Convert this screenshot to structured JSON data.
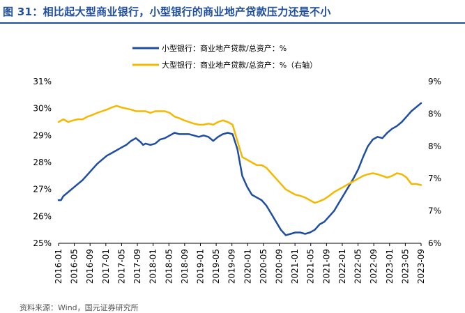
{
  "figure": {
    "title": "图 31：相比起大型商业银行，小型银行的商业地产贷款压力还是不小",
    "source": "资料来源：Wind，国元证券研究所"
  },
  "colors": {
    "small": "#1f4ea1",
    "large": "#f5b800",
    "title": "#1f4e9d"
  },
  "chart_data": {
    "type": "line",
    "x_labels": [
      "2016-01",
      "2016-05",
      "2016-09",
      "2017-01",
      "2017-05",
      "2017-09",
      "2018-01",
      "2018-05",
      "2018-09",
      "2019-01",
      "2019-05",
      "2019-09",
      "2020-01",
      "2020-05",
      "2020-09",
      "2021-01",
      "2021-05",
      "2021-09",
      "2022-01",
      "2022-05",
      "2022-09",
      "2023-01",
      "2023-05",
      "2023-09"
    ],
    "y_left": {
      "ticks": [
        "25%",
        "26%",
        "27%",
        "28%",
        "29%",
        "30%",
        "31%"
      ],
      "min": 25,
      "max": 31
    },
    "y_right": {
      "ticks": [
        "6%",
        "7%",
        "7%",
        "8%",
        "8%",
        "9%"
      ],
      "min": 6,
      "max": 9
    },
    "series": [
      {
        "name": "小型银行：商业地产贷款/总资产：%",
        "axis": "left",
        "points": [
          [
            0,
            26.6
          ],
          [
            0.5,
            26.6
          ],
          [
            1,
            26.75
          ],
          [
            2,
            26.9
          ],
          [
            3,
            27.05
          ],
          [
            4,
            27.2
          ],
          [
            5,
            27.35
          ],
          [
            6,
            27.55
          ],
          [
            7,
            27.75
          ],
          [
            8,
            27.95
          ],
          [
            9,
            28.1
          ],
          [
            10,
            28.25
          ],
          [
            11,
            28.35
          ],
          [
            12,
            28.45
          ],
          [
            13,
            28.55
          ],
          [
            14,
            28.65
          ],
          [
            15,
            28.8
          ],
          [
            16,
            28.9
          ],
          [
            17,
            28.75
          ],
          [
            17.5,
            28.65
          ],
          [
            18,
            28.7
          ],
          [
            19,
            28.65
          ],
          [
            20,
            28.7
          ],
          [
            21,
            28.85
          ],
          [
            22,
            28.9
          ],
          [
            23,
            29.0
          ],
          [
            24,
            29.1
          ],
          [
            25,
            29.05
          ],
          [
            26,
            29.05
          ],
          [
            27,
            29.05
          ],
          [
            28,
            29.0
          ],
          [
            29,
            28.95
          ],
          [
            30,
            29.0
          ],
          [
            31,
            28.95
          ],
          [
            32,
            28.8
          ],
          [
            33,
            28.95
          ],
          [
            34,
            29.05
          ],
          [
            35,
            29.1
          ],
          [
            36,
            29.05
          ],
          [
            37,
            28.5
          ],
          [
            37.5,
            28.0
          ],
          [
            38,
            27.5
          ],
          [
            39,
            27.1
          ],
          [
            40,
            26.8
          ],
          [
            41,
            26.7
          ],
          [
            42,
            26.6
          ],
          [
            43,
            26.4
          ],
          [
            44,
            26.1
          ],
          [
            45,
            25.8
          ],
          [
            46,
            25.5
          ],
          [
            47,
            25.3
          ],
          [
            48,
            25.35
          ],
          [
            49,
            25.4
          ],
          [
            50,
            25.4
          ],
          [
            51,
            25.35
          ],
          [
            52,
            25.4
          ],
          [
            53,
            25.5
          ],
          [
            54,
            25.7
          ],
          [
            55,
            25.8
          ],
          [
            56,
            26.0
          ],
          [
            57,
            26.2
          ],
          [
            58,
            26.5
          ],
          [
            59,
            26.8
          ],
          [
            60,
            27.1
          ],
          [
            61,
            27.4
          ],
          [
            62,
            27.75
          ],
          [
            63,
            28.2
          ],
          [
            64,
            28.6
          ],
          [
            65,
            28.85
          ],
          [
            66,
            28.95
          ],
          [
            67,
            28.9
          ],
          [
            68,
            29.1
          ],
          [
            69,
            29.25
          ],
          [
            70,
            29.35
          ],
          [
            71,
            29.5
          ],
          [
            72,
            29.7
          ],
          [
            73,
            29.9
          ],
          [
            74,
            30.05
          ],
          [
            75,
            30.2
          ]
        ]
      },
      {
        "name": "大型银行：商业地产贷款/总资产：%（右轴）",
        "axis": "right",
        "points": [
          [
            0,
            8.25
          ],
          [
            1,
            8.3
          ],
          [
            2,
            8.25
          ],
          [
            3,
            8.28
          ],
          [
            4,
            8.3
          ],
          [
            5,
            8.3
          ],
          [
            6,
            8.35
          ],
          [
            7,
            8.38
          ],
          [
            8,
            8.42
          ],
          [
            9,
            8.45
          ],
          [
            10,
            8.48
          ],
          [
            11,
            8.52
          ],
          [
            12,
            8.55
          ],
          [
            13,
            8.52
          ],
          [
            14,
            8.5
          ],
          [
            15,
            8.48
          ],
          [
            16,
            8.45
          ],
          [
            17,
            8.45
          ],
          [
            18,
            8.45
          ],
          [
            19,
            8.42
          ],
          [
            20,
            8.45
          ],
          [
            21,
            8.45
          ],
          [
            22,
            8.45
          ],
          [
            23,
            8.42
          ],
          [
            24,
            8.35
          ],
          [
            25,
            8.32
          ],
          [
            26,
            8.28
          ],
          [
            27,
            8.25
          ],
          [
            28,
            8.22
          ],
          [
            29,
            8.2
          ],
          [
            30,
            8.2
          ],
          [
            31,
            8.22
          ],
          [
            32,
            8.2
          ],
          [
            33,
            8.25
          ],
          [
            34,
            8.28
          ],
          [
            35,
            8.25
          ],
          [
            36,
            8.2
          ],
          [
            37,
            7.9
          ],
          [
            37.5,
            7.75
          ],
          [
            38,
            7.6
          ],
          [
            39,
            7.55
          ],
          [
            40,
            7.5
          ],
          [
            41,
            7.45
          ],
          [
            42,
            7.45
          ],
          [
            43,
            7.4
          ],
          [
            44,
            7.3
          ],
          [
            45,
            7.2
          ],
          [
            46,
            7.1
          ],
          [
            47,
            7.0
          ],
          [
            48,
            6.95
          ],
          [
            49,
            6.9
          ],
          [
            50,
            6.88
          ],
          [
            51,
            6.85
          ],
          [
            52,
            6.8
          ],
          [
            53,
            6.75
          ],
          [
            54,
            6.78
          ],
          [
            55,
            6.82
          ],
          [
            56,
            6.88
          ],
          [
            57,
            6.95
          ],
          [
            58,
            7.0
          ],
          [
            59,
            7.05
          ],
          [
            60,
            7.1
          ],
          [
            61,
            7.15
          ],
          [
            62,
            7.2
          ],
          [
            63,
            7.25
          ],
          [
            64,
            7.28
          ],
          [
            65,
            7.3
          ],
          [
            66,
            7.28
          ],
          [
            67,
            7.25
          ],
          [
            68,
            7.22
          ],
          [
            69,
            7.25
          ],
          [
            70,
            7.3
          ],
          [
            71,
            7.28
          ],
          [
            72,
            7.22
          ],
          [
            73,
            7.1
          ],
          [
            74,
            7.1
          ],
          [
            75,
            7.08
          ]
        ]
      }
    ],
    "legend": "top-center",
    "grid": false
  }
}
